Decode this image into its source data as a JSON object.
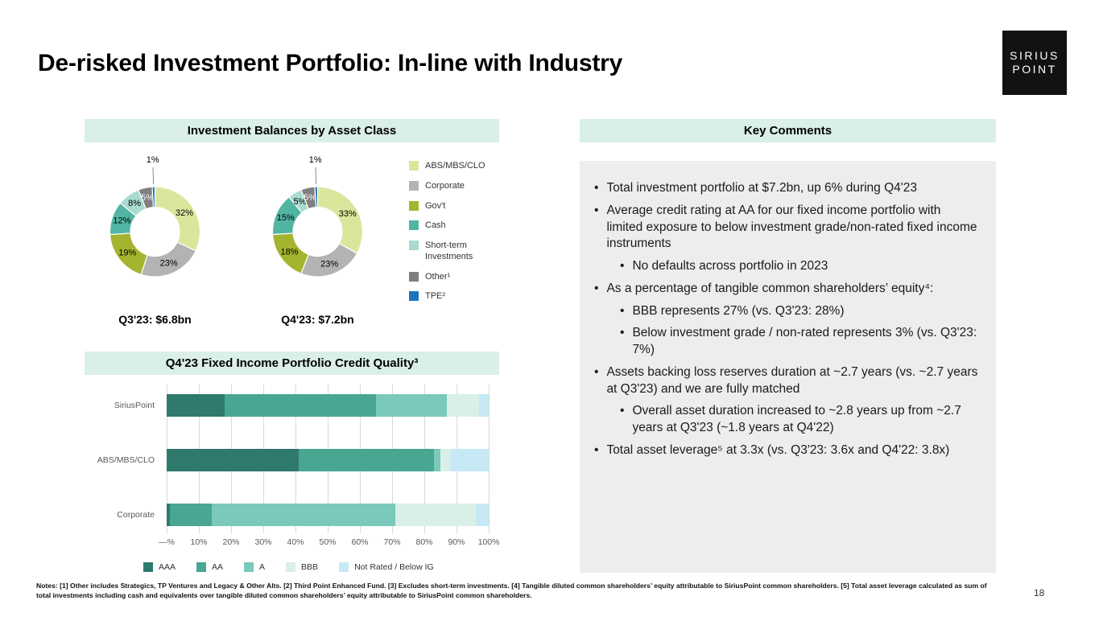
{
  "page": {
    "title": "De-risked Investment Portfolio: In-line with Industry",
    "page_number": "18"
  },
  "logo": {
    "line1": "SIRIUS",
    "line2": "POINT"
  },
  "sections": {
    "balances": {
      "title": "Investment Balances by Asset Class"
    },
    "credit_quality": {
      "title": "Q4'23 Fixed Income Portfolio Credit Quality³"
    },
    "key_comments": {
      "title": "Key Comments"
    }
  },
  "key_comments": {
    "bullets": [
      {
        "level": 1,
        "text": "Total investment portfolio at $7.2bn, up 6% during Q4'23"
      },
      {
        "level": 1,
        "text": "Average credit rating at AA for our fixed income portfolio with limited exposure to below investment grade/non-rated fixed income instruments"
      },
      {
        "level": 2,
        "text": "No defaults across portfolio in 2023"
      },
      {
        "level": 1,
        "text": "As a percentage of tangible common shareholders’ equity⁴:"
      },
      {
        "level": 2,
        "text": "BBB represents 27% (vs. Q3'23: 28%)"
      },
      {
        "level": 2,
        "text": "Below investment grade / non-rated represents 3% (vs. Q3'23: 7%)"
      },
      {
        "level": 1,
        "text": "Assets backing loss reserves duration at ~2.7 years (vs. ~2.7 years at Q3'23) and we are fully matched"
      },
      {
        "level": 2,
        "text": "Overall asset duration increased to ~2.8 years up from ~2.7 years at Q3'23 (~1.8 years at Q4'22)"
      },
      {
        "level": 1,
        "text": "Total asset leverage⁵ at 3.3x (vs. Q3'23: 3.6x and Q4'22: 3.8x)"
      }
    ]
  },
  "notes": "Notes: [1] Other includes Strategics, TP Ventures and Legacy & Other Alts. [2] Third Point Enhanced Fund. [3] Excludes short-term investments. [4] Tangible diluted common shareholders’ equity attributable to SiriusPoint common shareholders. [5] Total asset leverage calculated as sum of total investments including cash and equivalents over tangible diluted common shareholders’ equity attributable to SiriusPoint common shareholders.",
  "chart_data": [
    {
      "type": "pie",
      "subtype": "donut",
      "title": "Q3'23: $6.8bn",
      "unit": "%",
      "labels": [
        "ABS/MBS/CLO",
        "Corporate",
        "Gov't",
        "Cash",
        "Short-term Investments",
        "Other¹",
        "TPE²"
      ],
      "values": [
        32,
        23,
        19,
        12,
        8,
        5,
        1
      ],
      "colors": [
        "#dbe69c",
        "#b3b3b3",
        "#a4b42e",
        "#52b5a4",
        "#a9dacf",
        "#7f7f7f",
        "#1c75bc"
      ],
      "legend_position": "right"
    },
    {
      "type": "pie",
      "subtype": "donut",
      "title": "Q4'23: $7.2bn",
      "unit": "%",
      "labels": [
        "ABS/MBS/CLO",
        "Corporate",
        "Gov't",
        "Cash",
        "Short-term Investments",
        "Other¹",
        "TPE²"
      ],
      "values": [
        33,
        23,
        18,
        15,
        5,
        5,
        1
      ],
      "colors": [
        "#dbe69c",
        "#b3b3b3",
        "#a4b42e",
        "#52b5a4",
        "#a9dacf",
        "#7f7f7f",
        "#1c75bc"
      ],
      "legend_position": "right"
    },
    {
      "type": "bar",
      "subtype": "stacked-horizontal",
      "title": "Q4'23 Fixed Income Portfolio Credit Quality³",
      "categories": [
        "SiriusPoint",
        "ABS/MBS/CLO",
        "Corporate"
      ],
      "series": [
        {
          "name": "AAA",
          "color": "#2e7a6c",
          "values": [
            18,
            41,
            1
          ]
        },
        {
          "name": "AA",
          "color": "#49a692",
          "values": [
            47,
            42,
            13
          ]
        },
        {
          "name": "A",
          "color": "#7bc9ba",
          "values": [
            22,
            2,
            57
          ]
        },
        {
          "name": "BBB",
          "color": "#d9efe8",
          "values": [
            10,
            3,
            25
          ]
        },
        {
          "name": "Not Rated / Below IG",
          "color": "#c7e9f6",
          "values": [
            3,
            12,
            4
          ]
        }
      ],
      "xlim": [
        0,
        100
      ],
      "x_ticks": [
        "—%",
        "10%",
        "20%",
        "30%",
        "40%",
        "50%",
        "60%",
        "70%",
        "80%",
        "90%",
        "100%"
      ],
      "grid": true,
      "legend_position": "bottom"
    }
  ]
}
